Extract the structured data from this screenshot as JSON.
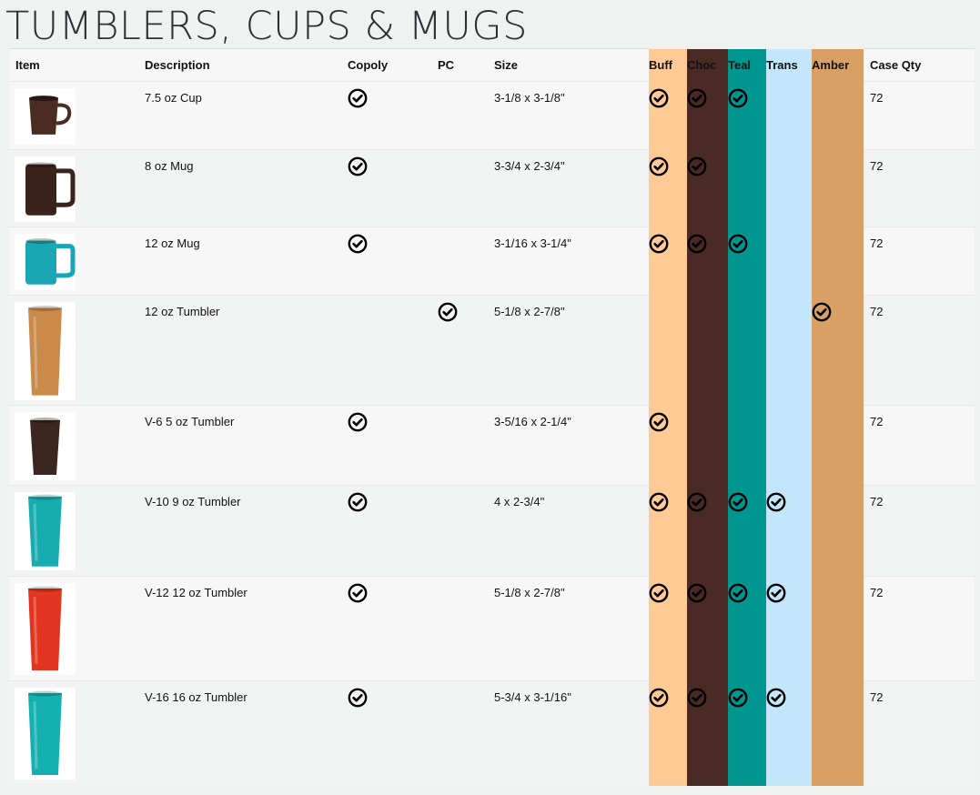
{
  "page": {
    "title": "TUMBLERS, CUPS & MUGS"
  },
  "headers": {
    "item": "Item",
    "description": "Description",
    "copoly": "Copoly",
    "pc": "PC",
    "size": "Size",
    "buff": "Buff",
    "choc": "Choc",
    "teal": "Teal",
    "trans": "Trans",
    "amber": "Amber",
    "case_qty": "Case Qty"
  },
  "colors": {
    "buff": "#ffca96",
    "choc": "#4a2a25",
    "teal": "#009690",
    "trans": "#c4e6fa",
    "amber": "#d9a066"
  },
  "icons": {
    "check": "check-circle-icon"
  },
  "rows": [
    {
      "description": "7.5 oz Cup",
      "size": "3-1/8 x 3-1/8\"",
      "case_qty": "72",
      "copoly": true,
      "pc": false,
      "buff": true,
      "choc": true,
      "teal": true,
      "trans": false,
      "amber": false,
      "product": "cup",
      "product_color": "#4a2c22"
    },
    {
      "description": "8 oz Mug",
      "size": "3-3/4 x 2-3/4\"",
      "case_qty": "72",
      "copoly": true,
      "pc": false,
      "buff": true,
      "choc": true,
      "teal": false,
      "trans": false,
      "amber": false,
      "product": "mug",
      "product_color": "#3b231c"
    },
    {
      "description": "12 oz Mug",
      "size": "3-1/16 x 3-1/4\"",
      "case_qty": "72",
      "copoly": true,
      "pc": false,
      "buff": true,
      "choc": true,
      "teal": true,
      "trans": false,
      "amber": false,
      "product": "mug-wide",
      "product_color": "#1aa6b3"
    },
    {
      "description": "12 oz Tumbler",
      "size": "5-1/8 x 2-7/8\"",
      "case_qty": "72",
      "copoly": false,
      "pc": true,
      "buff": false,
      "choc": false,
      "teal": false,
      "trans": false,
      "amber": true,
      "product": "tumbler-tall",
      "product_color": "#c98a4a"
    },
    {
      "description": "V-6 5 oz Tumbler",
      "size": "3-5/16 x 2-1/4\"",
      "case_qty": "72",
      "copoly": true,
      "pc": false,
      "buff": true,
      "choc": false,
      "teal": false,
      "trans": false,
      "amber": false,
      "product": "tumbler-short",
      "product_color": "#3d2620"
    },
    {
      "description": "V-10 9 oz Tumbler",
      "size": "4 x 2-3/4\"",
      "case_qty": "72",
      "copoly": true,
      "pc": false,
      "buff": true,
      "choc": true,
      "teal": true,
      "trans": true,
      "amber": false,
      "product": "tumbler-mid",
      "product_color": "#17adb0"
    },
    {
      "description": "V-12 12 oz Tumbler",
      "size": "5-1/8 x 2-7/8\"",
      "case_qty": "72",
      "copoly": true,
      "pc": false,
      "buff": true,
      "choc": true,
      "teal": true,
      "trans": true,
      "amber": false,
      "product": "tumbler-tall",
      "product_color": "#e2341e"
    },
    {
      "description": "V-16 16 oz Tumbler",
      "size": "5-3/4 x 3-1/16\"",
      "case_qty": "72",
      "copoly": true,
      "pc": false,
      "buff": true,
      "choc": true,
      "teal": true,
      "trans": true,
      "amber": false,
      "product": "tumbler-tall",
      "product_color": "#15b0b0"
    }
  ]
}
